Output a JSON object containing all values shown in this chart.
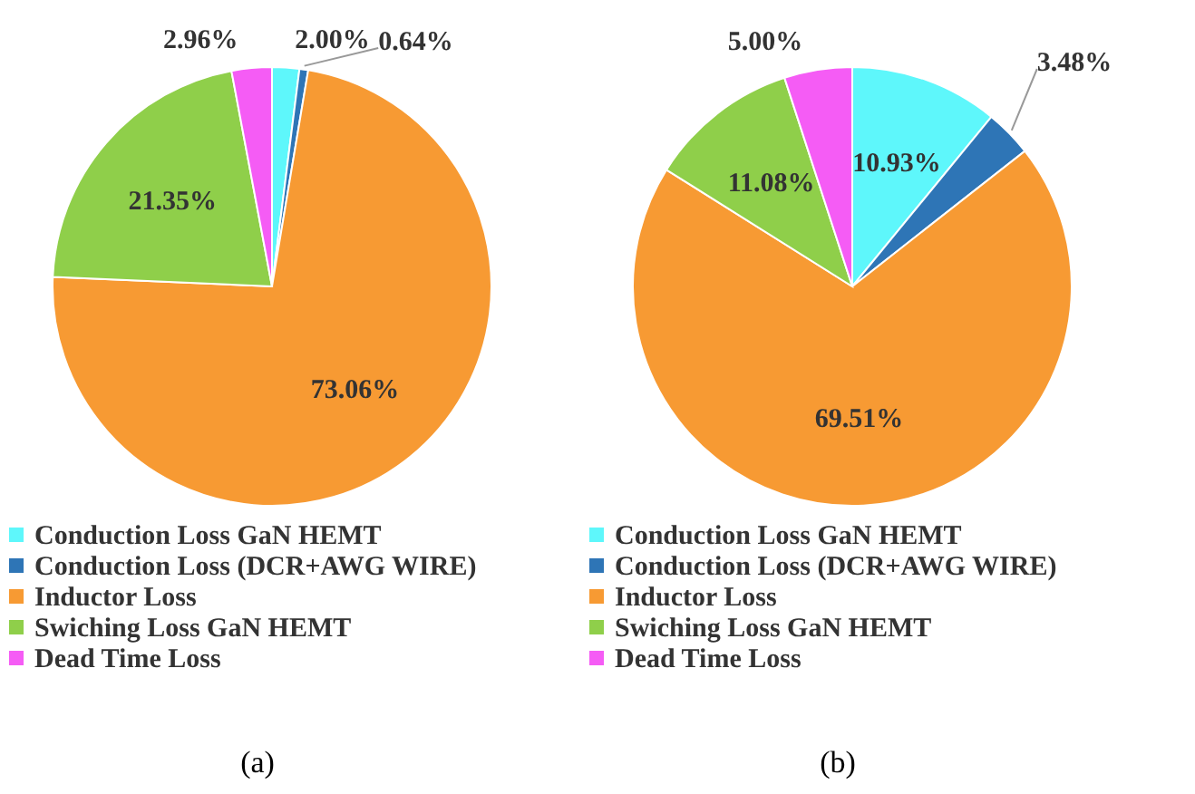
{
  "chart_data": [
    {
      "type": "pie",
      "annotations": [
        "(a)"
      ],
      "legend": "bottom",
      "data_labels": true,
      "categories": [
        "Conduction Loss GaN HEMT",
        "Conduction Loss (DCR+AWG WIRE)",
        "Inductor Loss",
        "Swiching Loss GaN HEMT",
        "Dead Time Loss"
      ],
      "values": [
        2.0,
        0.64,
        73.06,
        21.35,
        2.96
      ],
      "value_labels": [
        "2.00%",
        "0.64%",
        "73.06%",
        "21.35%",
        "2.96%"
      ],
      "colors": [
        "#5ef7fb",
        "#2e75b6",
        "#f79a33",
        "#8fcf4a",
        "#f55cf5"
      ]
    },
    {
      "type": "pie",
      "annotations": [
        "(b)"
      ],
      "legend": "bottom",
      "data_labels": true,
      "categories": [
        "Conduction Loss GaN HEMT",
        "Conduction Loss (DCR+AWG WIRE)",
        "Inductor Loss",
        "Swiching Loss GaN HEMT",
        "Dead Time Loss"
      ],
      "values": [
        10.93,
        3.48,
        69.51,
        11.08,
        5.0
      ],
      "value_labels": [
        "10.93%",
        "3.48%",
        "69.51%",
        "11.08%",
        "5.00%"
      ],
      "colors": [
        "#5ef7fb",
        "#2e75b6",
        "#f79a33",
        "#8fcf4a",
        "#f55cf5"
      ]
    }
  ]
}
